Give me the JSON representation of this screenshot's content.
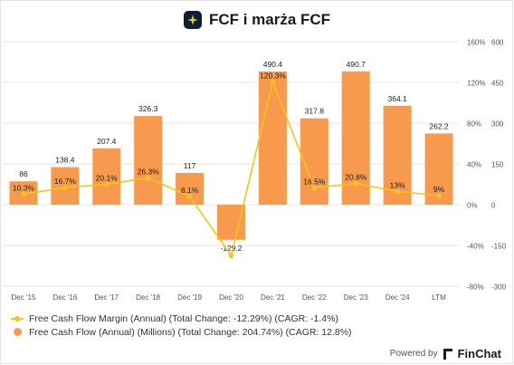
{
  "title": "FCF i marża FCF",
  "colors": {
    "bar": "#f79a4d",
    "line": "#f5c518",
    "grid": "#e6e6e6",
    "axis_text": "#555555",
    "title_icon_bg": "#0e1f3a",
    "title_icon_star": "#f5c518"
  },
  "icons": {
    "title_icon": "sparkle-icon",
    "brand_icon": "finchat-logo-icon"
  },
  "chart_data": {
    "type": "bar+line",
    "categories": [
      "Dec '15",
      "Dec '16",
      "Dec '17",
      "Dec '18",
      "Dec '19",
      "Dec '20",
      "Dec '21",
      "Dec '22",
      "Dec '23",
      "Dec '24",
      "LTM"
    ],
    "series": [
      {
        "name": "Free Cash Flow (Annual) (Millions)",
        "type": "bar",
        "axis": "right",
        "values": [
          86,
          138.4,
          207.4,
          326.3,
          117,
          -129.2,
          490.4,
          317.8,
          490.7,
          364.1,
          262.2
        ],
        "labels": [
          "86",
          "138.4",
          "207.4",
          "326.3",
          "117",
          "-129.2",
          "490.4",
          "317.8",
          "490.7",
          "364.1",
          "262.2"
        ]
      },
      {
        "name": "Free Cash Flow Margin (Annual)",
        "type": "line",
        "axis": "left",
        "values": [
          10.3,
          16.7,
          20.1,
          26.3,
          8.1,
          -50,
          120.3,
          16.5,
          20.8,
          13,
          9
        ],
        "labels": [
          "10.3%",
          "16.7%",
          "20.1%",
          "26.3%",
          "8.1%",
          "",
          "120.3%",
          "16.5%",
          "20.8%",
          "13%",
          "9%"
        ]
      }
    ],
    "y_left": {
      "range": [
        -80,
        160
      ],
      "ticks": [
        "160%",
        "120%",
        "80%",
        "40%",
        "0%",
        "-40%",
        "-80%"
      ]
    },
    "y_right": {
      "range": [
        -300,
        600
      ],
      "ticks": [
        "600",
        "450",
        "300",
        "150",
        "0",
        "-150",
        "-300"
      ]
    },
    "grid": true,
    "legend_position": "bottom-left"
  },
  "legend": {
    "line_label": "Free Cash Flow Margin (Annual) (Total Change: -12.29%) (CAGR: -1.4%)",
    "bar_label": "Free Cash Flow (Annual) (Millions) (Total Change: 204.74%) (CAGR: 12.8%)"
  },
  "footer": {
    "powered_by": "Powered by",
    "brand": "FinChat"
  }
}
